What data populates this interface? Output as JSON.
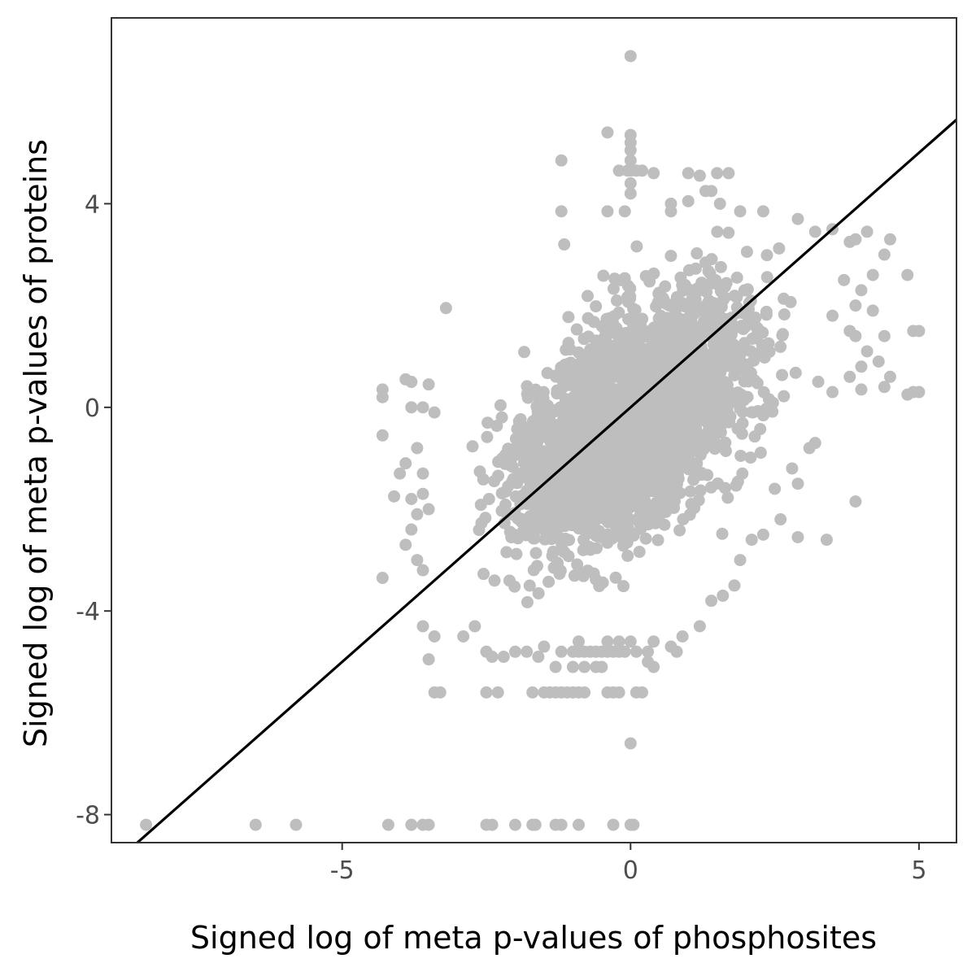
{
  "chart_data": {
    "type": "scatter",
    "title": "",
    "xlabel": "Signed log of meta p-values of phosphosites",
    "ylabel": "Signed log of meta p-values of proteins",
    "xlim": [
      -9.0,
      5.65
    ],
    "ylim": [
      -8.55,
      7.65
    ],
    "x_ticks": [
      -5,
      0,
      5
    ],
    "x_tick_labels": [
      "-5",
      "0",
      "5"
    ],
    "y_ticks": [
      -8,
      -4,
      0,
      4
    ],
    "y_tick_labels": [
      "-8",
      "-4",
      "0",
      "4"
    ],
    "grid": false,
    "point_color": "#bebebe",
    "line_color": "#000000",
    "reference_line": {
      "type": "identity",
      "slope": 1,
      "intercept": 0
    },
    "point_cloud": {
      "center": [
        0.1,
        -0.2
      ],
      "sd_x": 1.0,
      "sd_y": 1.25,
      "correlation": 0.55,
      "approx_count": 2600
    },
    "series": [
      {
        "points": [
          [
            0,
            6.9
          ],
          [
            -0.4,
            5.4
          ],
          [
            0,
            5.35
          ],
          [
            0,
            5.2
          ],
          [
            0,
            5.05
          ],
          [
            -1.2,
            4.85
          ],
          [
            0,
            4.85
          ],
          [
            0,
            4.65
          ],
          [
            -0.2,
            4.65
          ],
          [
            -0.05,
            4.65
          ],
          [
            0.1,
            4.65
          ],
          [
            0.2,
            4.65
          ],
          [
            0.4,
            4.6
          ],
          [
            1.0,
            4.6
          ],
          [
            1.5,
            4.6
          ],
          [
            1.7,
            4.6
          ],
          [
            1.2,
            4.55
          ],
          [
            0,
            4.4
          ],
          [
            1.3,
            4.25
          ],
          [
            1.0,
            4.05
          ],
          [
            1.4,
            4.25
          ],
          [
            0,
            4.2
          ],
          [
            0.7,
            4.0
          ],
          [
            1.55,
            4.0
          ],
          [
            -0.4,
            3.85
          ],
          [
            -1.2,
            3.85
          ],
          [
            -0.1,
            3.85
          ],
          [
            0.7,
            3.85
          ],
          [
            1.9,
            3.85
          ],
          [
            2.3,
            3.85
          ],
          [
            2.9,
            3.7
          ],
          [
            -1.15,
            3.2
          ],
          [
            3.5,
            3.5
          ],
          [
            3.2,
            3.45
          ],
          [
            4.1,
            3.45
          ],
          [
            4.5,
            3.3
          ],
          [
            3.8,
            3.25
          ],
          [
            3.9,
            3.3
          ],
          [
            4.4,
            3.0
          ],
          [
            4.2,
            2.6
          ],
          [
            4.8,
            2.6
          ],
          [
            3.7,
            2.5
          ],
          [
            4.0,
            2.3
          ],
          [
            3.9,
            2.0
          ],
          [
            3.5,
            1.8
          ],
          [
            4.2,
            1.9
          ],
          [
            3.8,
            1.5
          ],
          [
            3.9,
            1.4
          ],
          [
            4.4,
            1.4
          ],
          [
            4.9,
            1.5
          ],
          [
            5.0,
            1.5
          ],
          [
            4.1,
            1.1
          ],
          [
            4.3,
            0.9
          ],
          [
            4.0,
            0.8
          ],
          [
            3.8,
            0.6
          ],
          [
            4.5,
            0.6
          ],
          [
            4.4,
            0.4
          ],
          [
            4.0,
            0.35
          ],
          [
            5.0,
            0.3
          ],
          [
            4.9,
            0.3
          ],
          [
            4.8,
            0.25
          ],
          [
            3.5,
            0.3
          ],
          [
            3.2,
            -0.7
          ],
          [
            3.1,
            -0.8
          ],
          [
            3.9,
            -1.85
          ],
          [
            2.9,
            -2.55
          ],
          [
            3.4,
            -2.6
          ],
          [
            2.9,
            -1.5
          ],
          [
            -4.3,
            0.35
          ],
          [
            -4.3,
            0.2
          ],
          [
            -4.3,
            -0.55
          ],
          [
            -3.9,
            0.55
          ],
          [
            -3.8,
            0.5
          ],
          [
            -3.5,
            0.45
          ],
          [
            -3.6,
            0.0
          ],
          [
            -3.8,
            0.0
          ],
          [
            -3.4,
            -0.1
          ],
          [
            -3.7,
            -0.8
          ],
          [
            -3.9,
            -1.1
          ],
          [
            -4.0,
            -1.3
          ],
          [
            -3.6,
            -1.3
          ],
          [
            -4.1,
            -1.75
          ],
          [
            -3.8,
            -1.8
          ],
          [
            -3.6,
            -1.7
          ],
          [
            -3.5,
            -2.0
          ],
          [
            -3.7,
            -2.1
          ],
          [
            -3.8,
            -2.4
          ],
          [
            -3.9,
            -2.7
          ],
          [
            -3.2,
            1.95
          ],
          [
            -4.3,
            -3.35
          ],
          [
            -3.6,
            -3.2
          ],
          [
            -3.7,
            -3.0
          ],
          [
            -3.6,
            -4.3
          ],
          [
            -3.4,
            -4.5
          ],
          [
            -3.5,
            -4.95
          ],
          [
            -3.4,
            -5.6
          ],
          [
            -3.3,
            -5.6
          ],
          [
            -2.9,
            -4.5
          ],
          [
            -2.7,
            -4.3
          ],
          [
            -2.5,
            -4.8
          ],
          [
            -2.4,
            -4.9
          ],
          [
            -2.5,
            -5.6
          ],
          [
            -2.3,
            -5.6
          ],
          [
            -2.2,
            -4.9
          ],
          [
            -2.0,
            -4.8
          ],
          [
            -1.8,
            -4.8
          ],
          [
            -1.6,
            -4.9
          ],
          [
            -1.5,
            -4.7
          ],
          [
            -1.7,
            -5.6
          ],
          [
            -1.5,
            -5.6
          ],
          [
            -1.4,
            -5.6
          ],
          [
            -1.3,
            -5.6
          ],
          [
            -1.2,
            -5.6
          ],
          [
            -1.1,
            -5.6
          ],
          [
            -1.0,
            -5.6
          ],
          [
            -0.9,
            -5.6
          ],
          [
            -0.8,
            -5.6
          ],
          [
            -0.4,
            -5.6
          ],
          [
            -0.3,
            -5.6
          ],
          [
            -0.2,
            -5.6
          ],
          [
            0.1,
            -5.6
          ],
          [
            0.2,
            -5.6
          ],
          [
            -1.3,
            -5.1
          ],
          [
            -1.0,
            -5.1
          ],
          [
            -0.8,
            -5.1
          ],
          [
            -0.5,
            -5.1
          ],
          [
            -0.6,
            -5.1
          ],
          [
            0.4,
            -5.1
          ],
          [
            0.3,
            -5.0
          ],
          [
            -1.2,
            -4.8
          ],
          [
            -1.0,
            -4.8
          ],
          [
            -0.9,
            -4.8
          ],
          [
            -0.8,
            -4.8
          ],
          [
            -0.7,
            -4.8
          ],
          [
            -0.6,
            -4.8
          ],
          [
            -0.5,
            -4.8
          ],
          [
            -0.4,
            -4.8
          ],
          [
            -0.3,
            -4.8
          ],
          [
            -0.2,
            -4.8
          ],
          [
            -0.1,
            -4.8
          ],
          [
            0.1,
            -4.8
          ],
          [
            0.3,
            -4.8
          ],
          [
            -0.9,
            -4.6
          ],
          [
            -0.4,
            -4.6
          ],
          [
            -0.2,
            -4.6
          ],
          [
            0.0,
            -4.6
          ],
          [
            0.4,
            -4.6
          ],
          [
            0.7,
            -4.7
          ],
          [
            0.8,
            -4.8
          ],
          [
            0.9,
            -4.5
          ],
          [
            1.2,
            -4.3
          ],
          [
            1.4,
            -3.8
          ],
          [
            1.6,
            -3.7
          ],
          [
            1.8,
            -3.5
          ],
          [
            1.9,
            -3.0
          ],
          [
            2.1,
            -2.6
          ],
          [
            2.3,
            -2.5
          ],
          [
            2.6,
            -2.2
          ],
          [
            2.5,
            -1.6
          ],
          [
            2.8,
            -1.2
          ],
          [
            0,
            -6.6
          ],
          [
            -8.4,
            -8.2
          ],
          [
            -6.5,
            -8.2
          ],
          [
            -5.8,
            -8.2
          ],
          [
            -4.2,
            -8.2
          ],
          [
            -3.8,
            -8.2
          ],
          [
            -3.6,
            -8.2
          ],
          [
            -3.5,
            -8.2
          ],
          [
            -2.5,
            -8.2
          ],
          [
            -2.4,
            -8.2
          ],
          [
            -2.0,
            -8.2
          ],
          [
            -1.7,
            -8.2
          ],
          [
            -1.65,
            -8.2
          ],
          [
            -1.3,
            -8.2
          ],
          [
            -1.2,
            -8.2
          ],
          [
            -0.9,
            -8.2
          ],
          [
            -0.3,
            -8.2
          ],
          [
            0,
            -8.2
          ],
          [
            0.05,
            -8.2
          ]
        ]
      }
    ]
  }
}
